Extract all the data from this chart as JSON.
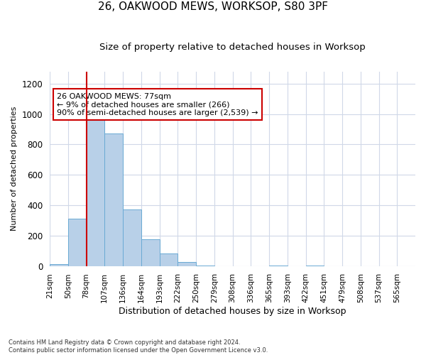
{
  "title1": "26, OAKWOOD MEWS, WORKSOP, S80 3PF",
  "title2": "Size of property relative to detached houses in Worksop",
  "xlabel": "Distribution of detached houses by size in Worksop",
  "ylabel": "Number of detached properties",
  "footnote": "Contains HM Land Registry data © Crown copyright and database right 2024.\nContains public sector information licensed under the Open Government Licence v3.0.",
  "bin_edges": [
    21,
    50,
    78,
    107,
    136,
    164,
    193,
    222,
    250,
    279,
    308,
    336,
    365,
    393,
    422,
    451,
    479,
    508,
    537,
    565,
    594
  ],
  "bar_heights": [
    10,
    310,
    970,
    870,
    370,
    175,
    80,
    25,
    5,
    0,
    0,
    0,
    5,
    0,
    5,
    0,
    0,
    0,
    0,
    0
  ],
  "bar_color": "#b8d0e8",
  "bar_edge_color": "#6aaad4",
  "property_line_x": 78,
  "annotation_text": "26 OAKWOOD MEWS: 77sqm\n← 9% of detached houses are smaller (266)\n90% of semi-detached houses are larger (2,539) →",
  "annotation_box_color": "#cc0000",
  "ylim_max": 1280,
  "yticks": [
    0,
    200,
    400,
    600,
    800,
    1000,
    1200
  ],
  "bg_color": "#ffffff",
  "grid_color": "#d0d8e8",
  "title1_fontsize": 11,
  "title2_fontsize": 9.5,
  "xlabel_fontsize": 9,
  "ylabel_fontsize": 8,
  "tick_fontsize": 7.5,
  "annot_fontsize": 8
}
